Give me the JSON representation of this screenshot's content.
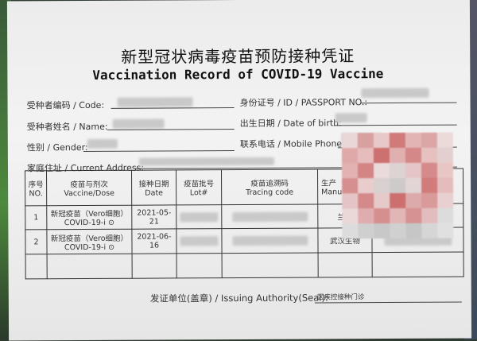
{
  "document": {
    "title": "新型冠状病毒疫苗预防接种凭证",
    "subtitle": "Vaccination Record of COVID-19 Vaccine",
    "fields": {
      "code_label": "受种者编码 / Code:",
      "id_label": "身份证号 / ID / PASSPORT NO.:",
      "name_label": "受种者姓名 / Name:",
      "dob_label": "出生日期 / Date of birth:",
      "gender_label": "性别 / Gender:",
      "phone_label": "联系电话 / Mobile Phone:",
      "address_label": "家庭住址 / Current Address:"
    },
    "table": {
      "headers": [
        {
          "cn": "序号",
          "en": "NO."
        },
        {
          "cn": "疫苗与剂次",
          "en": "Vaccine/Dose"
        },
        {
          "cn": "接种日期",
          "en": "Date"
        },
        {
          "cn": "疫苗批号",
          "en": "Lot#"
        },
        {
          "cn": "疫苗追溯码",
          "en": "Tracing code"
        },
        {
          "cn": "生产",
          "en": "Manu"
        }
      ],
      "rows": [
        {
          "no": "1",
          "vaccine_cn": "新冠疫苗（Vero细胞）",
          "vaccine_en": "COVID-19-i ⊙",
          "date": "2021-05-21",
          "manufacturer": "兰州"
        },
        {
          "no": "2",
          "vaccine_cn": "新冠疫苗（Vero细胞）",
          "vaccine_en": "COVID-19-i ⊙",
          "date": "2021-06-16",
          "manufacturer": "武汉生物"
        }
      ]
    },
    "issuing_label": "发证单位(盖章) / Issuing Authority(Seal):",
    "issuing_value": "区疾控接种门诊"
  }
}
